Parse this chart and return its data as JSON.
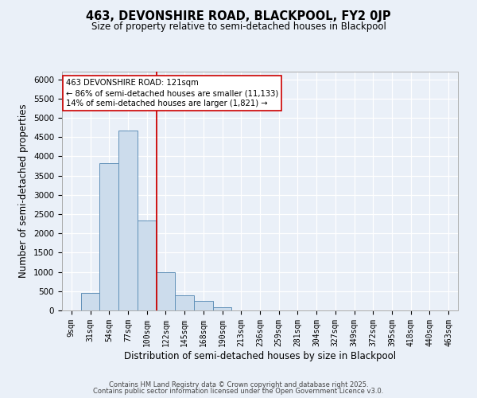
{
  "title": "463, DEVONSHIRE ROAD, BLACKPOOL, FY2 0JP",
  "subtitle": "Size of property relative to semi-detached houses in Blackpool",
  "xlabel": "Distribution of semi-detached houses by size in Blackpool",
  "ylabel": "Number of semi-detached properties",
  "bin_labels": [
    "9sqm",
    "31sqm",
    "54sqm",
    "77sqm",
    "100sqm",
    "122sqm",
    "145sqm",
    "168sqm",
    "190sqm",
    "213sqm",
    "236sqm",
    "259sqm",
    "281sqm",
    "304sqm",
    "327sqm",
    "349sqm",
    "372sqm",
    "395sqm",
    "418sqm",
    "440sqm",
    "463sqm"
  ],
  "bin_values": [
    0,
    450,
    3820,
    4680,
    2340,
    1000,
    400,
    240,
    90,
    0,
    0,
    0,
    0,
    0,
    0,
    0,
    0,
    0,
    0,
    0,
    0
  ],
  "bar_color": "#ccdcec",
  "bar_edge_color": "#6090b8",
  "vline_x_index": 5,
  "vline_color": "#cc0000",
  "annotation_line1": "463 DEVONSHIRE ROAD: 121sqm",
  "annotation_line2": "← 86% of semi-detached houses are smaller (11,133)",
  "annotation_line3": "14% of semi-detached houses are larger (1,821) →",
  "annotation_box_color": "#ffffff",
  "annotation_box_edge_color": "#cc0000",
  "ylim": [
    0,
    6200
  ],
  "yticks": [
    0,
    500,
    1000,
    1500,
    2000,
    2500,
    3000,
    3500,
    4000,
    4500,
    5000,
    5500,
    6000
  ],
  "background_color": "#eaf0f8",
  "plot_bg_color": "#eaf0f8",
  "grid_color": "#ffffff",
  "footer_line1": "Contains HM Land Registry data © Crown copyright and database right 2025.",
  "footer_line2": "Contains public sector information licensed under the Open Government Licence v3.0."
}
